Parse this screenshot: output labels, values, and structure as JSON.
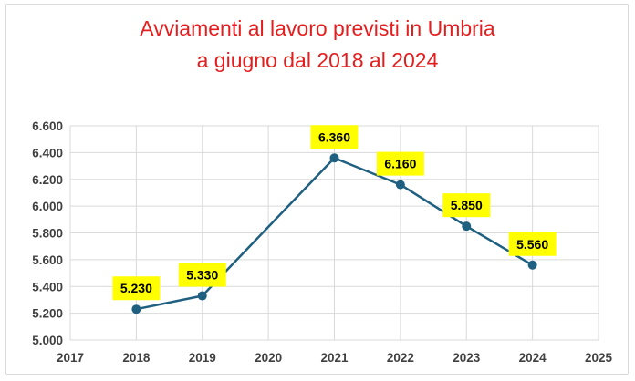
{
  "chart_data": {
    "type": "line",
    "title_lines": [
      "Avviamenti al lavoro previsti in Umbria",
      "a giugno dal 2018 al 2024"
    ],
    "x": [
      2018,
      2019,
      2021,
      2022,
      2023,
      2024
    ],
    "y": [
      5230,
      5330,
      6360,
      6160,
      5850,
      5560
    ],
    "data_labels": [
      "5.230",
      "5.330",
      "6.360",
      "6.160",
      "5.850",
      "5.560"
    ],
    "xlim": [
      2017,
      2025
    ],
    "x_ticks": [
      2017,
      2018,
      2019,
      2020,
      2021,
      2022,
      2023,
      2024,
      2025
    ],
    "x_tick_labels": [
      "2017",
      "2018",
      "2019",
      "2020",
      "2021",
      "2022",
      "2023",
      "2024",
      "2025"
    ],
    "ylim": [
      5000,
      6600
    ],
    "y_ticks": [
      5000,
      5200,
      5400,
      5600,
      5800,
      6000,
      6200,
      6400,
      6600
    ],
    "y_tick_labels": [
      "5.000",
      "5.200",
      "5.400",
      "5.600",
      "5.800",
      "6.000",
      "6.200",
      "6.400",
      "6.600"
    ],
    "grid": true,
    "legend": false,
    "xlabel": "",
    "ylabel": "",
    "colors": {
      "line": "#1f5f80",
      "label_background": "#ffff00",
      "title": "#e41e1e",
      "grid": "#d9d9d9"
    }
  }
}
